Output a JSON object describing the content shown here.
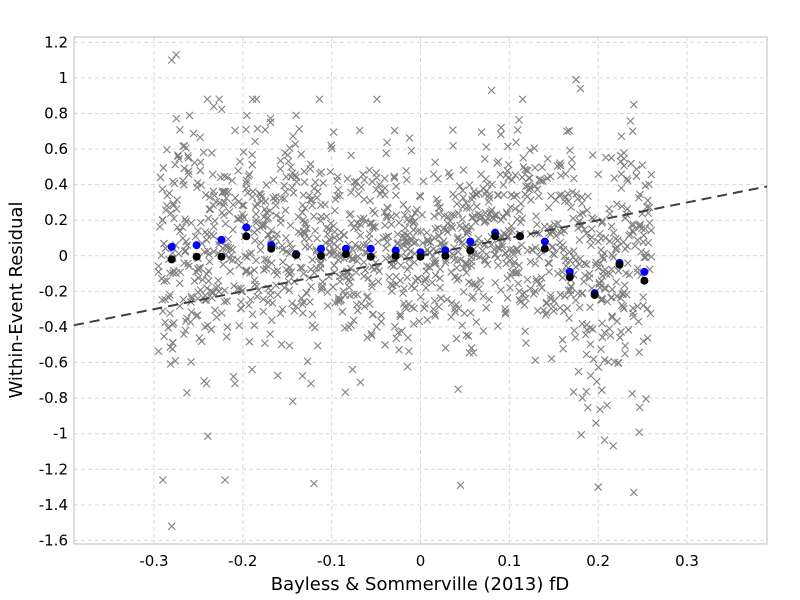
{
  "chart_data": {
    "type": "scatter",
    "title": "",
    "xlabel": "Bayless & Sommerville (2013) fD",
    "ylabel": "Within-Event Residual",
    "xlim": [
      -0.39,
      0.39
    ],
    "ylim": [
      -1.62,
      1.23
    ],
    "x_ticks": [
      -0.3,
      -0.2,
      -0.1,
      0,
      0.1,
      0.2,
      0.3
    ],
    "x_tick_labels": [
      "-0.3",
      "-0.2",
      "-0.1",
      "0",
      "0.1",
      "0.2",
      "0.3"
    ],
    "y_ticks": [
      1.2,
      1,
      0.8,
      0.6,
      0.4,
      0.2,
      0,
      -0.2,
      -0.4,
      -0.6,
      -0.8,
      -1,
      -1.2,
      -1.4,
      -1.6
    ],
    "y_tick_labels": [
      "1.2",
      "1",
      "0.8",
      "0.6",
      "0.4",
      "0.2",
      "0",
      "-0.2",
      "-0.4",
      "-0.6",
      "-0.8",
      "-1",
      "-1.2",
      "-1.4",
      "-1.6"
    ],
    "grid": true,
    "series": [
      {
        "marker": "x",
        "color": "#7f7f7f",
        "note_visible_outliers": [
          [
            -0.28,
            1.1
          ],
          [
            -0.275,
            1.13
          ],
          [
            -0.28,
            -1.52
          ],
          [
            -0.29,
            -1.26
          ],
          [
            -0.22,
            -1.26
          ],
          [
            -0.12,
            -1.28
          ],
          [
            0.175,
            0.99
          ],
          [
            0.18,
            0.94
          ],
          [
            0.045,
            -1.29
          ],
          [
            0.2,
            -1.3
          ],
          [
            0.24,
            -1.33
          ],
          [
            -0.14,
            0.79
          ],
          [
            0.08,
            0.93
          ],
          [
            0.115,
            0.88
          ],
          [
            0.24,
            0.85
          ]
        ],
        "distribution": [
          {
            "x": [
              -0.295,
              -0.275
            ],
            "mean": 0.05,
            "sd": 0.36
          },
          {
            "x": [
              -0.275,
              -0.24
            ],
            "mean": 0.05,
            "sd": 0.34
          },
          {
            "x": [
              -0.24,
              -0.18
            ],
            "mean": 0.1,
            "sd": 0.32
          },
          {
            "x": [
              -0.18,
              -0.12
            ],
            "mean": 0.05,
            "sd": 0.3
          },
          {
            "x": [
              -0.12,
              -0.06
            ],
            "mean": 0.03,
            "sd": 0.28
          },
          {
            "x": [
              -0.06,
              0.0
            ],
            "mean": 0.03,
            "sd": 0.27
          },
          {
            "x": [
              0.0,
              0.06
            ],
            "mean": 0.02,
            "sd": 0.27
          },
          {
            "x": [
              0.06,
              0.14
            ],
            "mean": 0.12,
            "sd": 0.27
          },
          {
            "x": [
              0.14,
              0.18
            ],
            "mean": 0.02,
            "sd": 0.3
          },
          {
            "x": [
              0.18,
              0.215
            ],
            "mean": -0.2,
            "sd": 0.35
          },
          {
            "x": [
              0.215,
              0.26
            ],
            "mean": -0.05,
            "sd": 0.36
          }
        ]
      },
      {
        "marker": "circle",
        "color": "#0000ff",
        "x": [
          -0.28,
          -0.252,
          -0.224,
          -0.196,
          -0.168,
          -0.14,
          -0.112,
          -0.084,
          -0.056,
          -0.028,
          0.0,
          0.028,
          0.056,
          0.084,
          0.112,
          0.14,
          0.168,
          0.196,
          0.224,
          0.252
        ],
        "values": [
          0.05,
          0.06,
          0.09,
          0.16,
          0.06,
          0.01,
          0.04,
          0.04,
          0.04,
          0.03,
          0.02,
          0.03,
          0.08,
          0.13,
          0.11,
          0.08,
          -0.09,
          -0.21,
          -0.04,
          -0.09
        ]
      },
      {
        "marker": "circle",
        "color": "#000000",
        "x": [
          -0.28,
          -0.252,
          -0.224,
          -0.196,
          -0.168,
          -0.14,
          -0.112,
          -0.084,
          -0.056,
          -0.028,
          0.0,
          0.028,
          0.056,
          0.084,
          0.112,
          0.14,
          0.168,
          0.196,
          0.224,
          0.252
        ],
        "values": [
          -0.02,
          -0.005,
          -0.005,
          0.11,
          0.04,
          0.005,
          0.0,
          0.01,
          -0.005,
          0.0,
          -0.005,
          0.0,
          0.03,
          0.11,
          0.11,
          0.04,
          -0.12,
          -0.22,
          -0.05,
          -0.14
        ]
      },
      {
        "type": "line",
        "style": "dashed",
        "color": "#404040",
        "x": [
          -0.39,
          0.39
        ],
        "values": [
          -0.39,
          0.39
        ]
      }
    ]
  }
}
